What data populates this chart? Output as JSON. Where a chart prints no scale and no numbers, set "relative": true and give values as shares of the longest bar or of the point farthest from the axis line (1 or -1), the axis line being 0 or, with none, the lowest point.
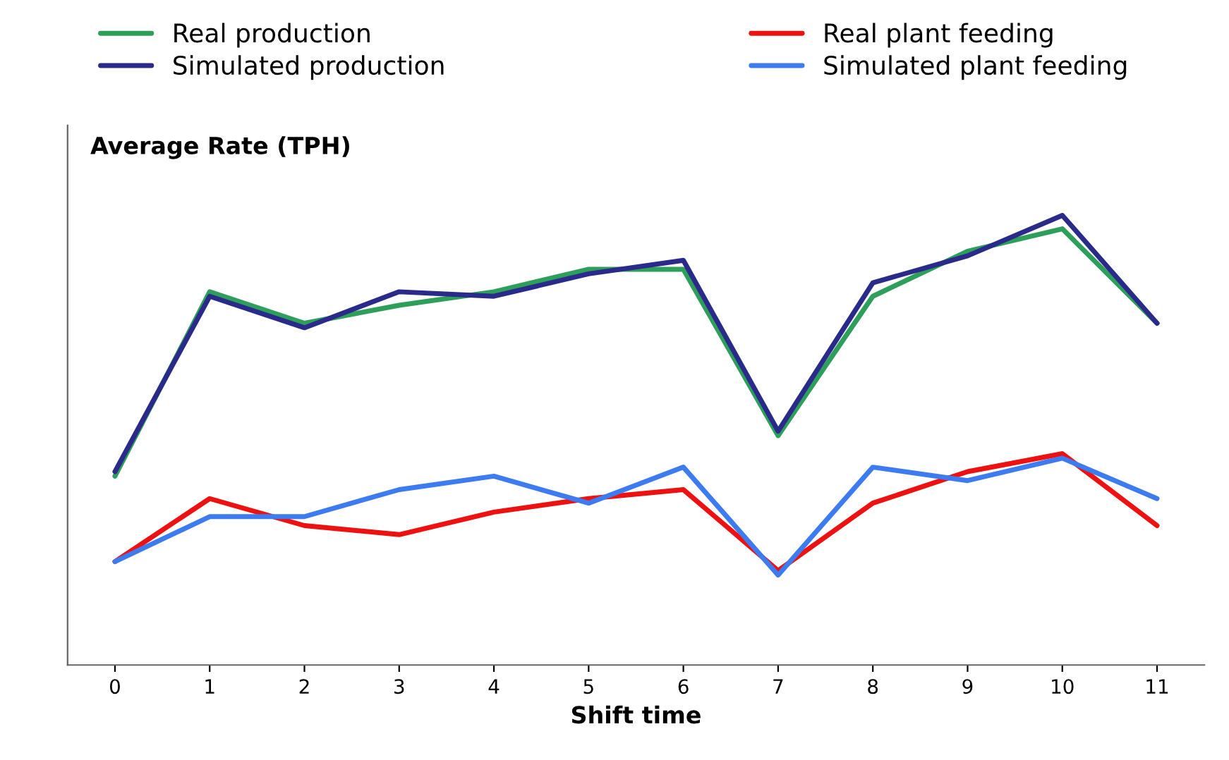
{
  "chart_data": {
    "type": "line",
    "relative": true,
    "xlabel": "Shift time",
    "ylabel": "Average Rate (TPH)",
    "legend": "top",
    "grid": false,
    "marker": "none",
    "line_style": "solid",
    "categories": [
      "0",
      "1",
      "2",
      "3",
      "4",
      "5",
      "6",
      "7",
      "8",
      "9",
      "10",
      "11"
    ],
    "series": [
      {
        "name": "Real production",
        "color": "#2e9e5b",
        "values": [
          0.42,
          0.83,
          0.76,
          0.8,
          0.83,
          0.88,
          0.88,
          0.51,
          0.82,
          0.92,
          0.97,
          0.76
        ]
      },
      {
        "name": "Simulated production",
        "color": "#2a2a8a",
        "values": [
          0.43,
          0.82,
          0.75,
          0.83,
          0.82,
          0.87,
          0.9,
          0.52,
          0.85,
          0.91,
          1.0,
          0.76
        ]
      },
      {
        "name": "Real plant feeding",
        "color": "#ee1111",
        "values": [
          0.23,
          0.37,
          0.31,
          0.29,
          0.34,
          0.37,
          0.39,
          0.21,
          0.36,
          0.43,
          0.47,
          0.31
        ]
      },
      {
        "name": "Simulated plant feeding",
        "color": "#3c7cf0",
        "values": [
          0.23,
          0.33,
          0.33,
          0.39,
          0.42,
          0.36,
          0.44,
          0.2,
          0.44,
          0.41,
          0.46,
          0.37
        ]
      }
    ]
  }
}
